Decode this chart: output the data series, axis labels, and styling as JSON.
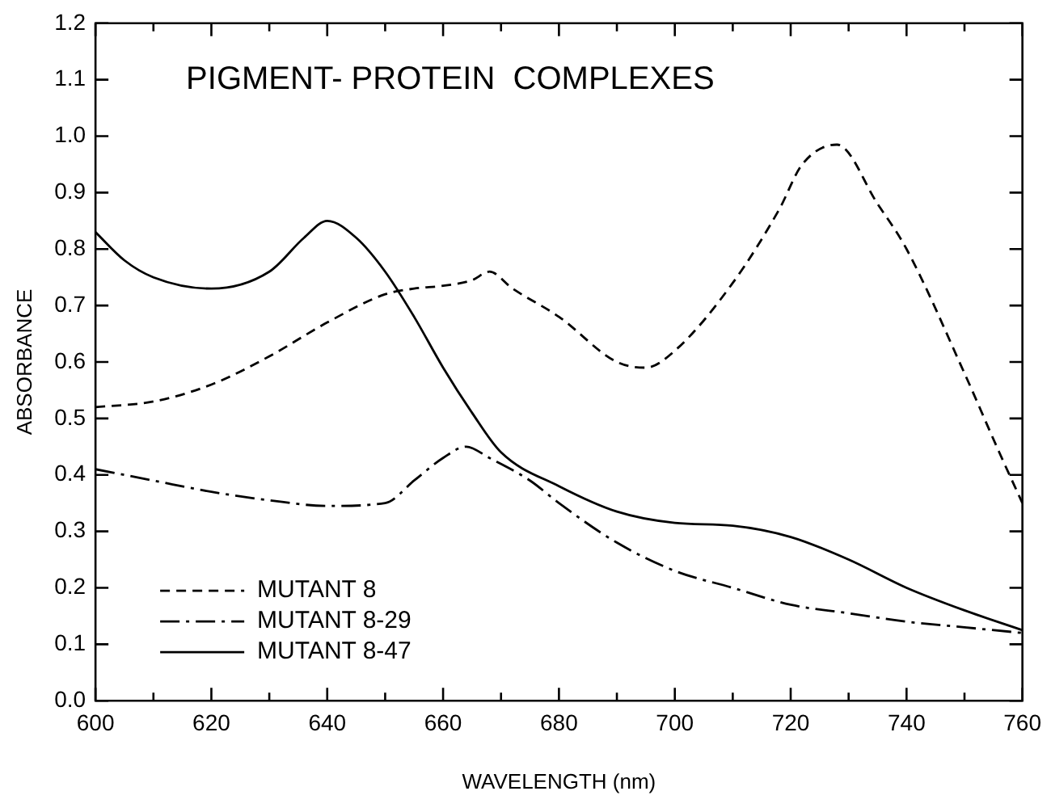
{
  "chart_data": {
    "type": "line",
    "title": "PIGMENT- PROTEIN  COMPLEXES",
    "xlabel": "WAVELENGTH (nm)",
    "ylabel": "ABSORBANCE",
    "xlim": [
      600,
      760
    ],
    "ylim": [
      0,
      1.2
    ],
    "xticks": [
      600,
      {
        "value": 610,
        "label": null
      },
      620,
      {
        "value": 630,
        "label": null
      },
      640,
      {
        "value": 650,
        "label": null
      },
      660,
      {
        "value": 670,
        "label": null
      },
      680,
      {
        "value": 690,
        "label": null
      },
      700,
      {
        "value": 710,
        "label": null
      },
      720,
      {
        "value": 730,
        "label": null
      },
      740,
      {
        "value": 750,
        "label": null
      },
      760
    ],
    "yticks": [
      {
        "value": 0,
        "label": "0.0"
      },
      0.1,
      0.2,
      0.3,
      0.4,
      0.5,
      0.6,
      0.7,
      0.8,
      0.9,
      {
        "value": 1,
        "label": "1.0"
      },
      1.1,
      1.2
    ],
    "grid": false,
    "legend": "bottom left",
    "marker": "none",
    "series": [
      {
        "name": "MUTANT 8",
        "color": "#000000",
        "line_style": "dashed",
        "x": [
          600,
          610,
          620,
          630,
          640,
          650,
          655,
          660,
          665,
          668,
          672,
          680,
          690,
          695,
          700,
          710,
          718,
          722,
          728,
          735,
          740,
          750,
          756,
          760
        ],
        "values": [
          0.52,
          0.53,
          0.56,
          0.61,
          0.67,
          0.72,
          0.73,
          0.735,
          0.745,
          0.76,
          0.73,
          0.68,
          0.6,
          0.59,
          0.62,
          0.74,
          0.87,
          0.95,
          0.985,
          0.88,
          0.8,
          0.58,
          0.44,
          0.35
        ]
      },
      {
        "name": "MUTANT 8-29",
        "color": "#000000",
        "line_style": "dashdot",
        "x": [
          600,
          610,
          620,
          630,
          640,
          650,
          655,
          660,
          664,
          668,
          675,
          680,
          690,
          700,
          710,
          720,
          730,
          740,
          750,
          760
        ],
        "values": [
          0.41,
          0.39,
          0.37,
          0.355,
          0.345,
          0.35,
          0.39,
          0.43,
          0.45,
          0.43,
          0.39,
          0.35,
          0.28,
          0.23,
          0.2,
          0.17,
          0.155,
          0.14,
          0.13,
          0.12
        ]
      },
      {
        "name": "MUTANT 8-47",
        "color": "#000000",
        "line_style": "solid",
        "x": [
          600,
          605,
          610,
          620,
          630,
          636,
          640,
          645,
          650,
          655,
          660,
          665,
          670,
          680,
          690,
          700,
          710,
          720,
          730,
          740,
          750,
          760
        ],
        "values": [
          0.83,
          0.78,
          0.75,
          0.73,
          0.76,
          0.82,
          0.85,
          0.82,
          0.76,
          0.68,
          0.59,
          0.51,
          0.44,
          0.38,
          0.335,
          0.315,
          0.31,
          0.29,
          0.25,
          0.2,
          0.16,
          0.125
        ]
      }
    ]
  }
}
